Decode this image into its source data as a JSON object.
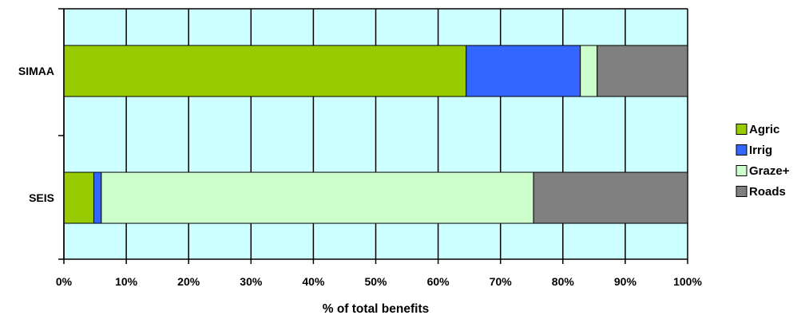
{
  "chart_data": {
    "type": "bar",
    "orientation": "horizontal",
    "stacked": "percent",
    "categories": [
      "SIMAA",
      "SEIS"
    ],
    "series": [
      {
        "name": "Agric",
        "values": [
          64.5,
          4.8
        ],
        "color": "#99cc00"
      },
      {
        "name": "Irrig",
        "values": [
          18.3,
          1.2
        ],
        "color": "#3366ff"
      },
      {
        "name": "Graze+",
        "values": [
          2.7,
          69.3
        ],
        "color": "#ccffcc"
      },
      {
        "name": "Roads",
        "values": [
          14.5,
          24.7
        ],
        "color": "#808080"
      }
    ],
    "title": "",
    "xlabel": "% of total benefits",
    "ylabel": "",
    "xlim": [
      0,
      100
    ],
    "xticks": [
      "0%",
      "10%",
      "20%",
      "30%",
      "40%",
      "50%",
      "60%",
      "70%",
      "80%",
      "90%",
      "100%"
    ],
    "grid": true,
    "plot_background": "#ccffff",
    "legend_position": "right"
  }
}
